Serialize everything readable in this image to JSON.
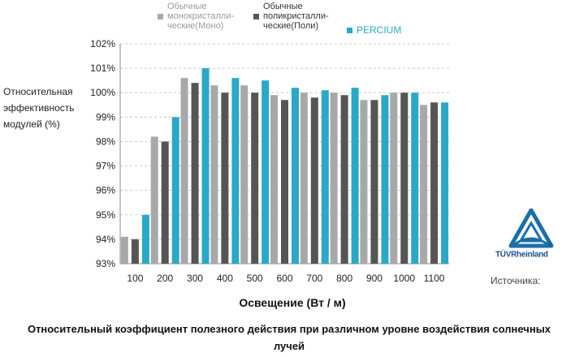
{
  "legend": [
    {
      "label": "Обычные\nмонокристалли-\nческие(Моно)",
      "color": "#a8a8a8",
      "text_color": "#9a9a9a"
    },
    {
      "label": "Обычные\nполикристалли-\nческие(Поли)",
      "color": "#555555",
      "text_color": "#333333"
    },
    {
      "label": "PERCIUM",
      "color": "#2aa8c8",
      "text_color": "#2aa8c8"
    }
  ],
  "source_label": "Источника:",
  "logo_text": "TÜVRheinland",
  "logo_mark": "®",
  "chart_data": {
    "type": "bar",
    "title": "Относительный коэффициент полезного действия при различном  уровне воздействия солнечных лучей",
    "xlabel": "Освещение (Вт / м)",
    "ylabel": "Относительная эффективность модулей (%)",
    "ylim": [
      93,
      102
    ],
    "yticks": [
      "93%",
      "94%",
      "95%",
      "96%",
      "97%",
      "98%",
      "99%",
      "100%",
      "101%",
      "102%"
    ],
    "grid": true,
    "legend_position": "top",
    "categories": [
      "100",
      "200",
      "300",
      "400",
      "500",
      "600",
      "700",
      "800",
      "900",
      "1000",
      "1100"
    ],
    "series": [
      {
        "name": "Обычные монокристалли-ческие(Моно)",
        "color": "#a8a8a8",
        "values": [
          94.1,
          98.2,
          100.6,
          100.3,
          100.3,
          99.9,
          100.0,
          100.0,
          99.7,
          100.0,
          99.5
        ]
      },
      {
        "name": "Обычные поликристалли-ческие(Поли)",
        "color": "#555555",
        "values": [
          94.0,
          98.0,
          100.4,
          100.0,
          100.0,
          99.7,
          99.8,
          99.9,
          99.7,
          100.0,
          99.6
        ]
      },
      {
        "name": "PERCIUM",
        "color": "#2aa8c8",
        "values": [
          95.0,
          99.0,
          101.0,
          100.6,
          100.5,
          100.2,
          100.1,
          100.2,
          99.9,
          100.0,
          99.6
        ]
      }
    ]
  }
}
